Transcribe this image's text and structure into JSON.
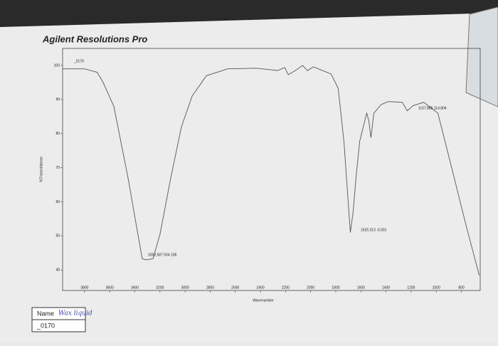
{
  "chart_data": {
    "type": "line",
    "title": "Agilent Resolutions Pro",
    "series_label": "_0170",
    "x_label": "Wavenumber",
    "y_label": "%Transmittance",
    "x": [
      3975,
      3800,
      3700,
      3652,
      3567,
      3454,
      3397,
      3341,
      3312,
      3255,
      3199,
      3114,
      3029,
      2944,
      2830,
      2660,
      2433,
      2263,
      2206,
      2178,
      2122,
      2064,
      2025,
      1979,
      1837,
      1781,
      1735,
      1707,
      1684,
      1662,
      1639,
      1610,
      1582,
      1554,
      1537,
      1520,
      1497,
      1440,
      1384,
      1270,
      1231,
      1185,
      1100,
      987,
      873,
      760,
      658
    ],
    "values": [
      99,
      99,
      98,
      95,
      88,
      67,
      55,
      43.3,
      43,
      43.3,
      50.6,
      67,
      82,
      91,
      97,
      99,
      99.2,
      98.5,
      99.4,
      97.3,
      98.5,
      100,
      98.5,
      99.6,
      97.5,
      93.3,
      77.7,
      63,
      51,
      57,
      67,
      77.7,
      81.9,
      86,
      83.8,
      78.8,
      86,
      88.5,
      89.4,
      89.2,
      86.7,
      88.2,
      89.2,
      86,
      69.4,
      52.7,
      38.5
    ],
    "color": "#555555",
    "xlim": [
      3975,
      650
    ],
    "ylim": [
      34,
      105
    ],
    "xticks": [
      3800,
      3600,
      3400,
      3200,
      3000,
      2800,
      2600,
      2400,
      2200,
      2000,
      1800,
      1600,
      1400,
      1200,
      1000,
      800
    ],
    "yticks": [
      40,
      50,
      60,
      70,
      80,
      90,
      100
    ],
    "annotations": [
      "3352.587  504.108",
      "1625.313  -0.001",
      "1157.885  114.804"
    ]
  },
  "sample_box": {
    "name_label": "Name",
    "name_value": "Wax liquid",
    "sample": "_0170"
  }
}
